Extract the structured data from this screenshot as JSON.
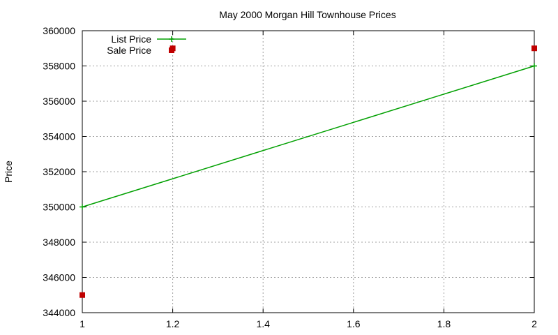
{
  "chart_data": {
    "type": "line",
    "title": "May 2000 Morgan Hill Townhouse Prices",
    "xlabel": "",
    "ylabel": "Price",
    "xlim": [
      1,
      2
    ],
    "ylim": [
      344000,
      360000
    ],
    "x_ticks": [
      "1",
      "1.2",
      "1.4",
      "1.6",
      "1.8",
      "2"
    ],
    "y_ticks": [
      "344000",
      "346000",
      "348000",
      "350000",
      "352000",
      "354000",
      "356000",
      "358000",
      "360000"
    ],
    "grid": true,
    "legend_position": "top-left",
    "series": [
      {
        "name": "List Price",
        "style": "linespoints",
        "color": "#00a000",
        "points": [
          [
            1,
            350000
          ],
          [
            2,
            358000
          ]
        ]
      },
      {
        "name": "Sale Price",
        "style": "points",
        "color": "#c00000",
        "points": [
          [
            1,
            345000
          ],
          [
            1.2,
            359000
          ],
          [
            2,
            359000
          ]
        ]
      }
    ]
  }
}
